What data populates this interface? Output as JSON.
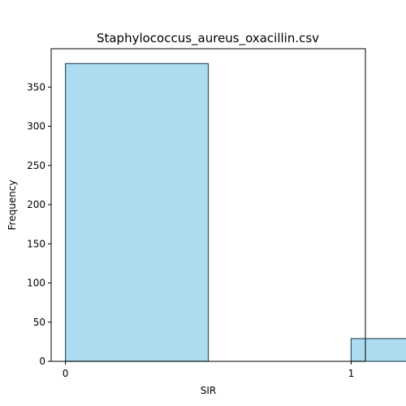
{
  "chart_data": {
    "type": "bar",
    "title": "Staphylococcus_aureus_oxacillin.csv",
    "xlabel": "SIR",
    "ylabel": "Frequency",
    "bins": [
      {
        "start": 0.0,
        "end": 0.5,
        "value": 380
      },
      {
        "start": 1.0,
        "end": 1.5,
        "value": 29
      }
    ],
    "bar_color": "#ADDCF0",
    "edge_color": "#2f4f5f",
    "xlim": [
      -0.05,
      1.05
    ],
    "ylim": [
      0,
      399
    ],
    "xticks": [
      0,
      1
    ],
    "yticks": [
      0,
      50,
      100,
      150,
      200,
      250,
      300,
      350
    ],
    "grid": false
  }
}
